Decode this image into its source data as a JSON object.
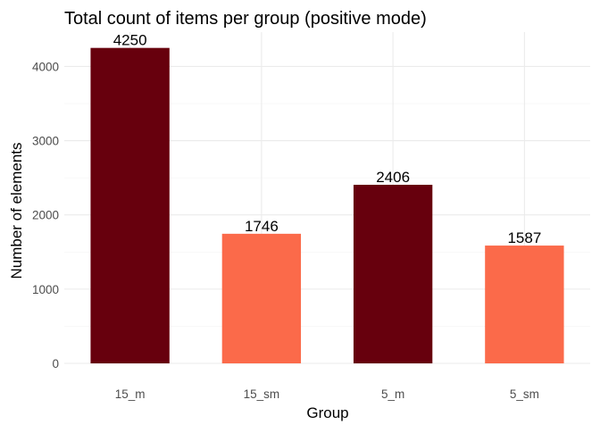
{
  "chart_data": {
    "type": "bar",
    "title": "Total count of items per group (positive mode)",
    "xlabel": "Group",
    "ylabel": "Number of elements",
    "categories": [
      "15_m",
      "15_sm",
      "5_m",
      "5_sm"
    ],
    "values": [
      4250,
      1746,
      2406,
      1587
    ],
    "colors": [
      "#67000D",
      "#FB6A4A",
      "#67000D",
      "#FB6A4A"
    ],
    "data_labels": [
      "4250",
      "1746",
      "2406",
      "1587"
    ],
    "ylim": [
      0,
      4462.5
    ],
    "yticks": [
      0,
      1000,
      2000,
      3000,
      4000
    ],
    "ytick_labels": [
      "0",
      "1000",
      "2000",
      "3000",
      "4000"
    ],
    "grid": true,
    "legend": "none"
  }
}
